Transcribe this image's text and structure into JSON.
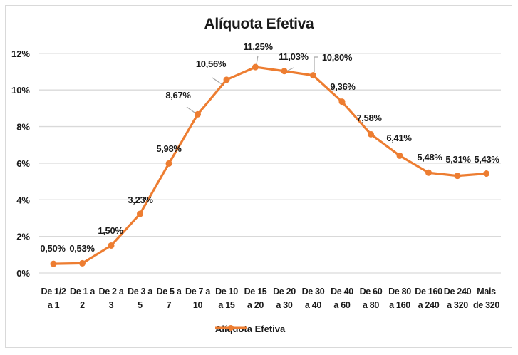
{
  "chart_data": {
    "type": "line",
    "title": "Alíquota Efetiva",
    "xlabel": "",
    "ylabel": "",
    "ylim": [
      0,
      12
    ],
    "yticks": [
      "0%",
      "2%",
      "4%",
      "6%",
      "8%",
      "10%",
      "12%"
    ],
    "grid": true,
    "legend_position": "bottom",
    "categories": [
      [
        "De 1/2",
        "a 1"
      ],
      [
        "De 1 a",
        "2"
      ],
      [
        "De 2 a",
        "3"
      ],
      [
        "De 3 a",
        "5"
      ],
      [
        "De 5 a",
        "7"
      ],
      [
        "De 7 a",
        "10"
      ],
      [
        "De 10",
        "a 15"
      ],
      [
        "De 15",
        "a 20"
      ],
      [
        "De 20",
        "a 30"
      ],
      [
        "De 30",
        "a 40"
      ],
      [
        "De 40",
        "a 60"
      ],
      [
        "De 60",
        "a 80"
      ],
      [
        "De 80",
        "a 160"
      ],
      [
        "De 160",
        "a 240"
      ],
      [
        "De 240",
        "a 320"
      ],
      [
        "Mais",
        "de 320"
      ]
    ],
    "series": [
      {
        "name": "Alíquota Efetiva",
        "color": "#ED7D31",
        "values": [
          0.5,
          0.53,
          1.5,
          3.23,
          5.98,
          8.67,
          10.56,
          11.25,
          11.03,
          10.8,
          9.36,
          7.58,
          6.41,
          5.48,
          5.31,
          5.43
        ],
        "labels": [
          "0,50%",
          "0,53%",
          "1,50%",
          "3,23%",
          "5,98%",
          "8,67%",
          "10,56%",
          "11,25%",
          "11,03%",
          "10,80%",
          "9,36%",
          "7,58%",
          "6,41%",
          "5,48%",
          "5,31%",
          "5,43%"
        ]
      }
    ]
  },
  "legend": {
    "label": "Alíquota Efetiva"
  },
  "colors": {
    "series": "#ED7D31",
    "grid": "#d9d9d9",
    "text": "#1a1a1a",
    "leader": "#a6a6a6"
  }
}
